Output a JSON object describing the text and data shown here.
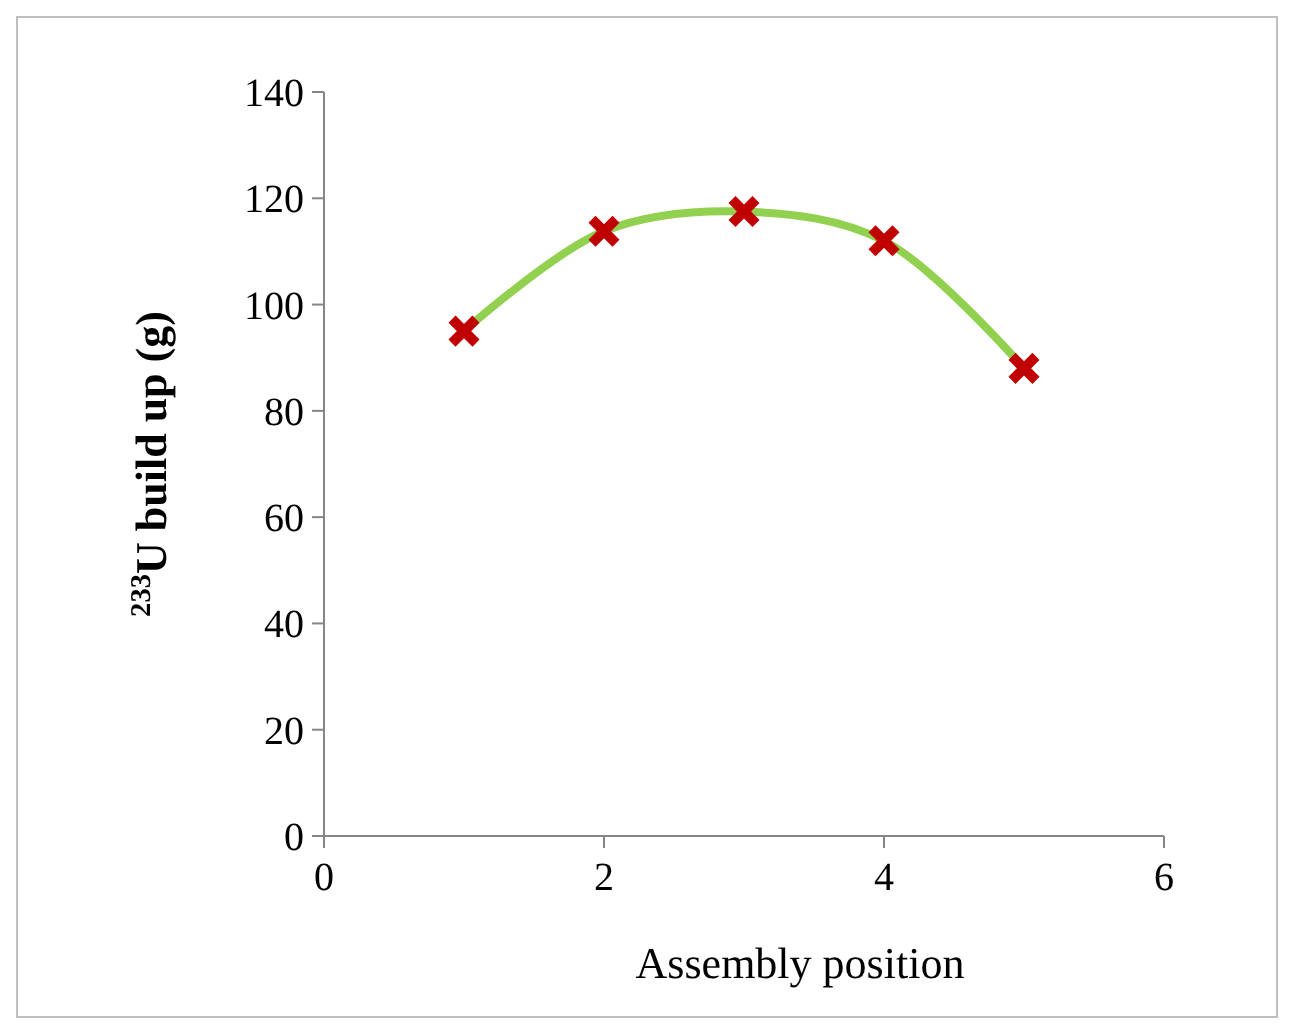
{
  "chart_data": {
    "type": "scatter",
    "xlabel": "Assembly position",
    "ylabel": "$^{233}$U build up (g)",
    "x": [
      1,
      2,
      3,
      4,
      5
    ],
    "series": [
      {
        "color": "#c00000",
        "marker": "cross",
        "values": [
          95,
          113.8,
          117.5,
          112,
          88
        ]
      },
      {
        "type": "line",
        "color": "#92d050",
        "marker": "none",
        "x": [
          1,
          2,
          3,
          4,
          5
        ],
        "values": [
          95,
          113.8,
          117.5,
          112,
          88
        ]
      }
    ],
    "xlim": [
      0,
      6
    ],
    "xticks": [
      0,
      2,
      4,
      6
    ],
    "ylim": [
      0,
      140
    ],
    "yticks": [
      0,
      20,
      40,
      60,
      80,
      100,
      120,
      140
    ],
    "grid": false,
    "line_style": "solid"
  }
}
